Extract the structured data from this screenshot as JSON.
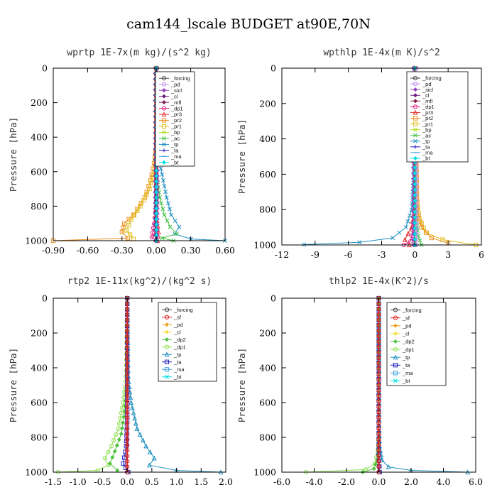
{
  "figure": {
    "title": "cam144_lscale  BUDGET at90E,70N"
  },
  "colors": {
    "forcing": "#444444",
    "pd": "#c090f0",
    "sicl": "#9040c0",
    "cl": "#702080",
    "mfl": "#802050",
    "dp1": "#e02080",
    "pr3": "#e03030",
    "pr2": "#f09020",
    "pr1": "#e0c020",
    "bp": "#b0e020",
    "ac": "#40c040",
    "tp": "#2090c0",
    "ta": "#2020c0",
    "ma": "#40a0e0",
    "bt": "#00e0e0",
    "sf": "#e02020",
    "pd2": "#f0a020",
    "cl2": "#f0e040",
    "dp2": "#50c040",
    "dp1b": "#90e050"
  },
  "chart_data": [
    {
      "type": "line",
      "title": "wprtp  1E-7x(m kg)/(s^2 kg)",
      "ylabel": "Pressure [hPa]",
      "xlim": [
        -0.9,
        0.6
      ],
      "ylim": [
        1000,
        0
      ],
      "xticks": [
        "-0.90",
        "-0.60",
        "-0.30",
        "0.00",
        "0.30",
        "0.60"
      ],
      "xtick_values": [
        -0.9,
        -0.6,
        -0.3,
        0.0,
        0.3,
        0.6
      ],
      "yticks": [
        "0",
        "200",
        "400",
        "600",
        "800",
        "1000"
      ],
      "ytick_values": [
        0,
        200,
        400,
        600,
        800,
        1000
      ],
      "legend": [
        "_forcing",
        "_pd",
        "_sicl",
        "_cl",
        "_mfl",
        "_dp1",
        "_pr3",
        "_pr2",
        "_pr1",
        "_bp",
        "_ac",
        "_tp",
        "_ta",
        "_ma",
        "_bt"
      ],
      "legend_keys": [
        "forcing",
        "pd",
        "sicl",
        "cl",
        "mfl",
        "dp1",
        "pr3",
        "pr2",
        "pr1",
        "bp",
        "ac",
        "tp",
        "ta",
        "ma",
        "bt"
      ],
      "legend_position": "top-right",
      "series": [
        {
          "key": "pr2",
          "points": [
            [
              0,
              0
            ],
            [
              0,
              450
            ],
            [
              -0.02,
              550
            ],
            [
              -0.05,
              650
            ],
            [
              -0.1,
              750
            ],
            [
              -0.2,
              850
            ],
            [
              -0.28,
              900
            ],
            [
              -0.3,
              950
            ],
            [
              -0.25,
              985
            ],
            [
              -0.9,
              1000
            ]
          ]
        },
        {
          "key": "pr1",
          "points": [
            [
              0,
              0
            ],
            [
              0,
              500
            ],
            [
              -0.02,
              600
            ],
            [
              -0.06,
              700
            ],
            [
              -0.14,
              800
            ],
            [
              -0.22,
              880
            ],
            [
              -0.26,
              940
            ],
            [
              -0.2,
              990
            ]
          ]
        },
        {
          "key": "tp",
          "points": [
            [
              0,
              0
            ],
            [
              0.01,
              450
            ],
            [
              0.03,
              550
            ],
            [
              0.06,
              650
            ],
            [
              0.09,
              750
            ],
            [
              0.13,
              850
            ],
            [
              0.2,
              920
            ],
            [
              0.16,
              960
            ],
            [
              0.3,
              990
            ],
            [
              0.6,
              1000
            ]
          ]
        },
        {
          "key": "ac",
          "points": [
            [
              0,
              0
            ],
            [
              0,
              600
            ],
            [
              0.03,
              750
            ],
            [
              0.07,
              850
            ],
            [
              0.12,
              920
            ],
            [
              0.18,
              960
            ],
            [
              0.05,
              985
            ],
            [
              0.15,
              1000
            ]
          ]
        },
        {
          "key": "dp1",
          "points": [
            [
              0,
              0
            ],
            [
              0,
              800
            ],
            [
              -0.02,
              900
            ],
            [
              -0.04,
              980
            ],
            [
              0,
              1000
            ]
          ]
        },
        {
          "key": "pr3",
          "points": [
            [
              0,
              0
            ],
            [
              0,
              850
            ],
            [
              0.02,
              950
            ],
            [
              0.01,
              1000
            ]
          ]
        },
        {
          "key": "ta",
          "points": [
            [
              0,
              0
            ],
            [
              0,
              700
            ],
            [
              -0.01,
              900
            ],
            [
              0.01,
              1000
            ]
          ]
        },
        {
          "key": "forcing",
          "points": [
            [
              0,
              0
            ],
            [
              0,
              1000
            ]
          ]
        },
        {
          "key": "cl",
          "points": [
            [
              -0.01,
              0
            ],
            [
              -0.01,
              1000
            ]
          ]
        },
        {
          "key": "sicl",
          "points": [
            [
              0.01,
              0
            ],
            [
              0.01,
              1000
            ]
          ]
        },
        {
          "key": "bt",
          "points": [
            [
              0,
              0
            ],
            [
              0,
              1000
            ]
          ]
        }
      ]
    },
    {
      "type": "line",
      "title": "wpthlp  1E-4x(m K)/s^2",
      "ylabel": "Pressure [hPa]",
      "xlim": [
        -12,
        6
      ],
      "ylim": [
        1000,
        0
      ],
      "xticks": [
        "-12",
        "-9",
        "-6",
        "-3",
        "0",
        "3",
        "6"
      ],
      "xtick_values": [
        -12,
        -9,
        -6,
        -3,
        0,
        3,
        6
      ],
      "yticks": [
        "0",
        "200",
        "400",
        "600",
        "800",
        "1000"
      ],
      "ytick_values": [
        0,
        200,
        400,
        600,
        800,
        1000
      ],
      "legend": [
        "_forcing",
        "_pd",
        "_sicl",
        "_cl",
        "_mfl",
        "_dp1",
        "_pr3",
        "_pr2",
        "_pr1",
        "_bp",
        "_ac",
        "_tp",
        "_ta",
        "_ma",
        "_bt"
      ],
      "legend_keys": [
        "forcing",
        "pd",
        "sicl",
        "cl",
        "mfl",
        "dp1",
        "pr3",
        "pr2",
        "pr1",
        "bp",
        "ac",
        "tp",
        "ta",
        "ma",
        "bt"
      ],
      "legend_position": "top-right",
      "series": [
        {
          "key": "tp",
          "points": [
            [
              0,
              0
            ],
            [
              -0.1,
              600
            ],
            [
              -0.3,
              800
            ],
            [
              -0.8,
              900
            ],
            [
              -2,
              960
            ],
            [
              -5,
              985
            ],
            [
              -10,
              998
            ]
          ]
        },
        {
          "key": "pr1",
          "points": [
            [
              0,
              0
            ],
            [
              0.1,
              700
            ],
            [
              0.4,
              850
            ],
            [
              1,
              930
            ],
            [
              2.5,
              970
            ],
            [
              5.5,
              1000
            ]
          ]
        },
        {
          "key": "pr2",
          "points": [
            [
              0,
              0
            ],
            [
              0.2,
              800
            ],
            [
              0.6,
              900
            ],
            [
              1.5,
              960
            ],
            [
              3,
              990
            ]
          ]
        },
        {
          "key": "pr3",
          "points": [
            [
              0,
              0
            ],
            [
              -0.1,
              800
            ],
            [
              -0.3,
              900
            ],
            [
              -0.9,
              970
            ],
            [
              -0.5,
              1000
            ]
          ]
        },
        {
          "key": "ac",
          "points": [
            [
              0,
              0
            ],
            [
              0.05,
              800
            ],
            [
              0.3,
              950
            ],
            [
              0.6,
              1000
            ]
          ]
        },
        {
          "key": "dp1",
          "points": [
            [
              0,
              0
            ],
            [
              0,
              850
            ],
            [
              -0.4,
              980
            ],
            [
              -1,
              1000
            ]
          ]
        },
        {
          "key": "forcing",
          "points": [
            [
              0,
              0
            ],
            [
              0,
              1000
            ]
          ]
        },
        {
          "key": "pd",
          "points": [
            [
              0.15,
              0
            ],
            [
              0.15,
              1000
            ]
          ]
        },
        {
          "key": "sicl",
          "points": [
            [
              -0.15,
              0
            ],
            [
              -0.15,
              1000
            ]
          ]
        },
        {
          "key": "bt",
          "points": [
            [
              0,
              0
            ],
            [
              0,
              1000
            ]
          ]
        }
      ]
    },
    {
      "type": "line",
      "title": "rtp2  1E-11x(kg^2)/(kg^2 s)",
      "ylabel": "Pressure [hPa]",
      "xlim": [
        -1.5,
        2.0
      ],
      "ylim": [
        1000,
        0
      ],
      "xticks": [
        "-1.5",
        "-1.0",
        "-0.5",
        "0.0",
        "0.5",
        "1.0",
        "1.5",
        "2.0"
      ],
      "xtick_values": [
        -1.5,
        -1.0,
        -0.5,
        0.0,
        0.5,
        1.0,
        1.5,
        2.0
      ],
      "yticks": [
        "0",
        "200",
        "400",
        "600",
        "800",
        "1000"
      ],
      "ytick_values": [
        0,
        200,
        400,
        600,
        800,
        1000
      ],
      "legend": [
        "_forcing",
        "_sf",
        "_pd",
        "_cl",
        "_dp2",
        "_dp1",
        "_tp",
        "_ta",
        "_ma",
        "_bt"
      ],
      "legend_keys": [
        "forcing",
        "sf",
        "pd2",
        "cl2",
        "dp2",
        "dp1b",
        "tp",
        "ta",
        "ma",
        "bt"
      ],
      "legend_position": "top-right",
      "series": [
        {
          "key": "dp1b",
          "points": [
            [
              0,
              0
            ],
            [
              -0.02,
              450
            ],
            [
              -0.08,
              600
            ],
            [
              -0.18,
              750
            ],
            [
              -0.32,
              850
            ],
            [
              -0.45,
              920
            ],
            [
              -0.38,
              960
            ],
            [
              -0.6,
              990
            ],
            [
              -1.4,
              1000
            ]
          ]
        },
        {
          "key": "dp2",
          "points": [
            [
              0,
              0
            ],
            [
              -0.01,
              500
            ],
            [
              -0.05,
              650
            ],
            [
              -0.12,
              780
            ],
            [
              -0.25,
              880
            ],
            [
              -0.35,
              950
            ],
            [
              -0.2,
              990
            ]
          ]
        },
        {
          "key": "tp",
          "points": [
            [
              0,
              0
            ],
            [
              0.02,
              450
            ],
            [
              0.08,
              600
            ],
            [
              0.2,
              750
            ],
            [
              0.38,
              850
            ],
            [
              0.55,
              920
            ],
            [
              0.45,
              960
            ],
            [
              1.0,
              990
            ],
            [
              1.9,
              1000
            ]
          ]
        },
        {
          "key": "ta",
          "points": [
            [
              0,
              0
            ],
            [
              0,
              700
            ],
            [
              -0.02,
              850
            ],
            [
              -0.08,
              950
            ],
            [
              0.02,
              1000
            ]
          ]
        },
        {
          "key": "forcing",
          "points": [
            [
              0,
              0
            ],
            [
              0,
              1000
            ]
          ]
        },
        {
          "key": "sf",
          "points": [
            [
              0,
              0
            ],
            [
              0,
              1000
            ]
          ]
        }
      ]
    },
    {
      "type": "line",
      "title": "thlp2  1E-4x(K^2)/s",
      "ylabel": "Pressure [hPa]",
      "xlim": [
        -6.0,
        6.0
      ],
      "ylim": [
        1000,
        0
      ],
      "xticks": [
        "-6.0",
        "-4.0",
        "-2.0",
        "0.0",
        "2.0",
        "4.0",
        "6.0"
      ],
      "xtick_values": [
        -6,
        -4,
        -2,
        0,
        2,
        4,
        6
      ],
      "yticks": [
        "0",
        "200",
        "400",
        "600",
        "800",
        "1000"
      ],
      "ytick_values": [
        0,
        200,
        400,
        600,
        800,
        1000
      ],
      "legend": [
        "_forcing",
        "_sf",
        "_pd",
        "_cl",
        "_dp2",
        "_dp1",
        "_tp",
        "_ta",
        "_ma",
        "_bt"
      ],
      "legend_keys": [
        "forcing",
        "sf",
        "pd2",
        "cl2",
        "dp2",
        "dp1b",
        "tp",
        "ta",
        "ma",
        "bt"
      ],
      "legend_position": "top-right",
      "series": [
        {
          "key": "tp",
          "points": [
            [
              0,
              0
            ],
            [
              0,
              700
            ],
            [
              0.05,
              850
            ],
            [
              0.2,
              930
            ],
            [
              0.6,
              970
            ],
            [
              2,
              990
            ],
            [
              5.5,
              1000
            ]
          ]
        },
        {
          "key": "dp1b",
          "points": [
            [
              0,
              0
            ],
            [
              0,
              750
            ],
            [
              -0.05,
              880
            ],
            [
              -0.25,
              950
            ],
            [
              -0.8,
              985
            ],
            [
              -4.5,
              1000
            ]
          ]
        },
        {
          "key": "dp2",
          "points": [
            [
              0,
              0
            ],
            [
              0,
              800
            ],
            [
              -0.1,
              930
            ],
            [
              -0.3,
              980
            ],
            [
              -1,
              1000
            ]
          ]
        },
        {
          "key": "ta",
          "points": [
            [
              0,
              0
            ],
            [
              0,
              900
            ],
            [
              0.05,
              1000
            ]
          ]
        },
        {
          "key": "forcing",
          "points": [
            [
              0,
              0
            ],
            [
              0,
              1000
            ]
          ]
        },
        {
          "key": "sf",
          "points": [
            [
              0,
              0
            ],
            [
              0,
              1000
            ]
          ]
        }
      ]
    }
  ]
}
